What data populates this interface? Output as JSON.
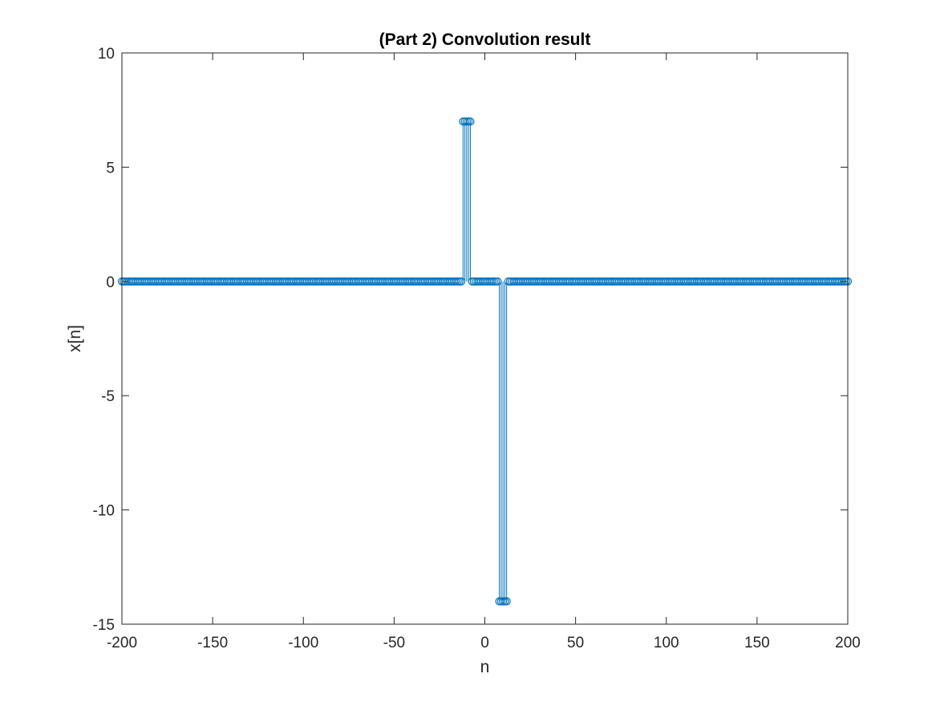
{
  "chart_data": {
    "type": "stem",
    "title": "(Part 2) Convolution result",
    "xlabel": "n",
    "ylabel": "x[n]",
    "xlim": [
      -200,
      200
    ],
    "ylim": [
      -15,
      10
    ],
    "xticks": [
      -200,
      -150,
      -100,
      -50,
      0,
      50,
      100,
      150,
      200
    ],
    "xtick_labels": [
      "-200",
      "-150",
      "-100",
      "-50",
      "0",
      "50",
      "100",
      "150",
      "200"
    ],
    "yticks": [
      -15,
      -10,
      -5,
      0,
      5,
      10
    ],
    "ytick_labels": [
      "-15",
      "-10",
      "-5",
      "0",
      "5",
      "10"
    ],
    "grid": false,
    "box": true,
    "marker": "circle",
    "color": "#0072BD",
    "n_range": [
      -200,
      200
    ],
    "baseline_value": 0,
    "nonzero_points": [
      {
        "x": -12,
        "y": 7
      },
      {
        "x": -11,
        "y": 7
      },
      {
        "x": -10,
        "y": 7
      },
      {
        "x": -9,
        "y": 7
      },
      {
        "x": -8,
        "y": 7
      },
      {
        "x": 8,
        "y": -14
      },
      {
        "x": 9,
        "y": -14
      },
      {
        "x": 10,
        "y": -14
      },
      {
        "x": 11,
        "y": -14
      },
      {
        "x": 12,
        "y": -14
      }
    ]
  }
}
